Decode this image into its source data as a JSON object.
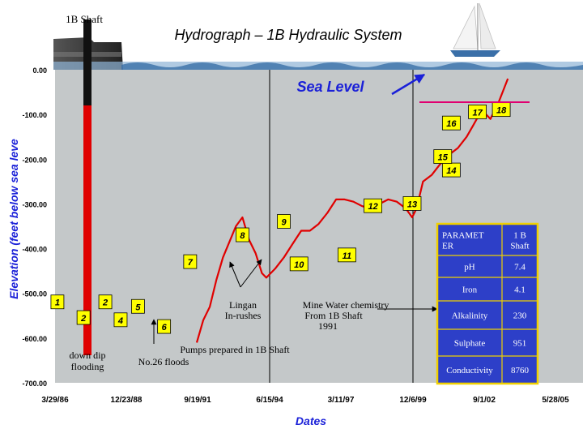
{
  "chart_data": {
    "type": "line",
    "title": "Hydrograph – 1B Hydraulic System",
    "xlabel": "Dates",
    "ylabel": "Elevation (feet below sea leve",
    "x_ticks": [
      "3/29/86",
      "12/23/88",
      "9/19/91",
      "6/15/94",
      "3/11/97",
      "12/6/99",
      "9/1/02",
      "5/28/05"
    ],
    "y_ticks": [
      "0.00",
      "-100.00",
      "-200.00",
      "-300.00",
      "-400.00",
      "-500.00",
      "-600.00",
      "-700.00"
    ],
    "ylim": [
      -700,
      0
    ],
    "xlim": [
      "1986-03-29",
      "2005-05-28"
    ],
    "grid": false,
    "series": [
      {
        "color": "#e00000",
        "x": [
          "1991-09-01",
          "1991-12-01",
          "1992-03-01",
          "1992-06-01",
          "1992-09-01",
          "1992-12-01",
          "1993-03-01",
          "1993-06-01",
          "1993-09-01",
          "1993-12-01",
          "1994-03-01",
          "1994-05-01",
          "1994-09-01",
          "1995-01-01",
          "1995-05-01",
          "1995-09-01",
          "1996-01-01",
          "1996-05-01",
          "1996-09-01",
          "1997-01-01",
          "1997-05-01",
          "1997-09-01",
          "1998-01-01",
          "1998-05-01",
          "1998-09-01",
          "1999-01-01",
          "1999-05-01",
          "1999-09-01",
          "1999-12-01",
          "2000-02-01",
          "2000-05-01",
          "2000-09-01",
          "2001-01-01",
          "2001-05-01",
          "2001-09-01",
          "2002-01-01",
          "2002-04-01",
          "2002-08-01",
          "2002-12-01",
          "2003-04-01",
          "2003-08-01"
        ],
        "y": [
          -610,
          -560,
          -530,
          -470,
          -420,
          -385,
          -350,
          -330,
          -380,
          -410,
          -455,
          -465,
          -445,
          -420,
          -390,
          -360,
          -360,
          -345,
          -320,
          -290,
          -290,
          -295,
          -305,
          -310,
          -300,
          -290,
          -295,
          -310,
          -330,
          -310,
          -250,
          -235,
          -210,
          -190,
          -175,
          -150,
          -125,
          -90,
          -110,
          -70,
          -20
        ]
      }
    ],
    "annotations": [
      {
        "label": "1",
        "date": "1986-05-01",
        "value": -520
      },
      {
        "label": "2",
        "date": "1988-03-01",
        "value": -520
      },
      {
        "label": "2",
        "date": "1987-05-01",
        "value": -555
      },
      {
        "label": "4",
        "date": "1988-10-01",
        "value": -560
      },
      {
        "label": "5",
        "date": "1989-06-01",
        "value": -530
      },
      {
        "label": "6",
        "date": "1990-06-01",
        "value": -575
      },
      {
        "label": "7",
        "date": "1991-06-01",
        "value": -430
      },
      {
        "label": "8",
        "date": "1993-06-01",
        "value": -370
      },
      {
        "label": "9",
        "date": "1995-01-01",
        "value": -340
      },
      {
        "label": "10",
        "date": "1995-08-01",
        "value": -435
      },
      {
        "label": "11",
        "date": "1997-06-01",
        "value": -415
      },
      {
        "label": "12",
        "date": "1998-06-01",
        "value": -305
      },
      {
        "label": "13",
        "date": "1999-12-01",
        "value": -300
      },
      {
        "label": "14",
        "date": "2001-06-01",
        "value": -225
      },
      {
        "label": "15",
        "date": "2001-02-01",
        "value": -195
      },
      {
        "label": "16",
        "date": "2001-06-01",
        "value": -120
      },
      {
        "label": "17",
        "date": "2002-06-01",
        "value": -95
      },
      {
        "label": "18",
        "date": "2003-05-01",
        "value": -90
      }
    ]
  },
  "texts": {
    "shaft_label": "1B Shaft",
    "sea_level": "Sea Level",
    "down_dip": "down dip\nflooding",
    "lingan": "Lingan\nIn-rushes",
    "pumps": "Pumps prepared in 1B Shaft\nNo.26 floods",
    "mine_water": "Mine Water chemistry\nFrom 1B Shaft\n1991"
  },
  "table": {
    "rows": [
      [
        "PARAMET\nER",
        "1 B\nShaft"
      ],
      [
        "pH",
        "7.4"
      ],
      [
        "Iron",
        "4.1"
      ],
      [
        "Alkalinity",
        "230"
      ],
      [
        "Sulphate",
        "951"
      ],
      [
        "Conductivity",
        "8760"
      ]
    ]
  },
  "colors": {
    "plot_bg": "#c4c8c9",
    "line": "#e00000",
    "label_box": "#ffff00",
    "sea_line": "#e00070",
    "arrow_blue": "#1a20d8",
    "table_border": "#f0d000",
    "table_bg": "#2d3fc8",
    "sea_level_text": "#1a20d8"
  }
}
